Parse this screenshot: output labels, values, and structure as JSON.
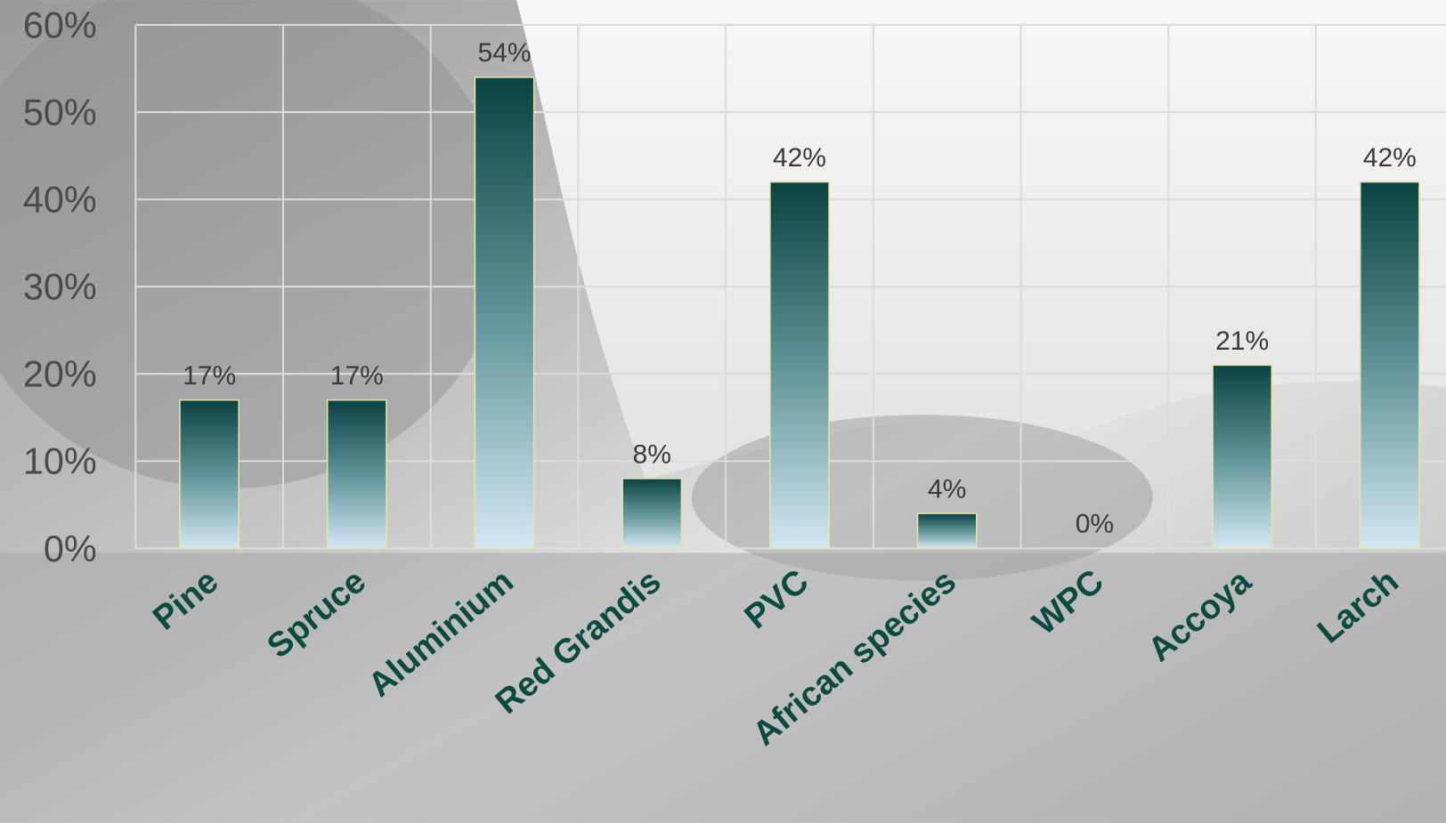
{
  "chart_data": {
    "type": "bar",
    "categories": [
      "Pine",
      "Spruce",
      "Aluminium",
      "Red Grandis",
      "PVC",
      "African species",
      "WPC",
      "Accoya",
      "Larch"
    ],
    "values": [
      17,
      17,
      54,
      8,
      42,
      4,
      0,
      21,
      42
    ],
    "value_labels": [
      "17%",
      "17%",
      "54%",
      "8%",
      "42%",
      "4%",
      "0%",
      "21%",
      "42%"
    ],
    "color": "#0a4242",
    "ylim": [
      0,
      60
    ],
    "yticks": [
      {
        "value": 0,
        "label": "0%"
      },
      {
        "value": 10,
        "label": "10%"
      },
      {
        "value": 20,
        "label": "20%"
      },
      {
        "value": 30,
        "label": "30%"
      },
      {
        "value": 40,
        "label": "40%"
      },
      {
        "value": 50,
        "label": "50%"
      },
      {
        "value": 60,
        "label": "60%"
      }
    ],
    "grid": true
  }
}
